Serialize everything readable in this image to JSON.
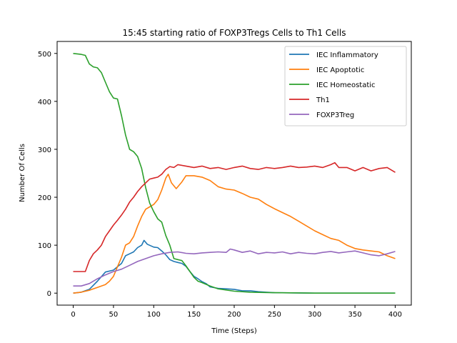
{
  "chart_data": {
    "type": "line",
    "title": "15:45 starting ratio of FOXP3Tregs Cells to Th1 Cells",
    "xlabel": "Time (Steps)",
    "ylabel": "Number Of Cells",
    "xlim": [
      -20,
      420
    ],
    "ylim": [
      -25,
      525
    ],
    "xticks": [
      0,
      50,
      100,
      150,
      200,
      250,
      300,
      350,
      400
    ],
    "yticks": [
      0,
      100,
      200,
      300,
      400,
      500
    ],
    "grid": false,
    "legend_position": "top-right",
    "series": [
      {
        "name": "IEC Inflammatory",
        "color": "#1f77b4",
        "points": [
          [
            0,
            0
          ],
          [
            10,
            2
          ],
          [
            20,
            8
          ],
          [
            30,
            25
          ],
          [
            40,
            44
          ],
          [
            50,
            48
          ],
          [
            55,
            55
          ],
          [
            60,
            62
          ],
          [
            65,
            78
          ],
          [
            70,
            82
          ],
          [
            75,
            86
          ],
          [
            80,
            95
          ],
          [
            85,
            100
          ],
          [
            88,
            110
          ],
          [
            92,
            102
          ],
          [
            100,
            96
          ],
          [
            105,
            95
          ],
          [
            110,
            88
          ],
          [
            115,
            80
          ],
          [
            120,
            70
          ],
          [
            125,
            66
          ],
          [
            130,
            64
          ],
          [
            135,
            62
          ],
          [
            140,
            56
          ],
          [
            145,
            45
          ],
          [
            150,
            35
          ],
          [
            155,
            30
          ],
          [
            160,
            24
          ],
          [
            165,
            20
          ],
          [
            170,
            13
          ],
          [
            180,
            10
          ],
          [
            190,
            9
          ],
          [
            200,
            8
          ],
          [
            210,
            5
          ],
          [
            220,
            5
          ],
          [
            230,
            3
          ],
          [
            240,
            2
          ],
          [
            250,
            1
          ],
          [
            300,
            0
          ],
          [
            350,
            0
          ],
          [
            400,
            0
          ]
        ]
      },
      {
        "name": "IEC Apoptotic",
        "color": "#ff7f0e",
        "points": [
          [
            0,
            0
          ],
          [
            10,
            2
          ],
          [
            20,
            6
          ],
          [
            30,
            12
          ],
          [
            40,
            18
          ],
          [
            45,
            25
          ],
          [
            50,
            35
          ],
          [
            55,
            55
          ],
          [
            60,
            75
          ],
          [
            65,
            100
          ],
          [
            70,
            105
          ],
          [
            75,
            118
          ],
          [
            80,
            140
          ],
          [
            85,
            160
          ],
          [
            90,
            175
          ],
          [
            95,
            180
          ],
          [
            100,
            185
          ],
          [
            105,
            195
          ],
          [
            110,
            215
          ],
          [
            115,
            240
          ],
          [
            118,
            248
          ],
          [
            122,
            230
          ],
          [
            128,
            218
          ],
          [
            135,
            232
          ],
          [
            140,
            245
          ],
          [
            150,
            245
          ],
          [
            160,
            242
          ],
          [
            170,
            235
          ],
          [
            180,
            222
          ],
          [
            190,
            217
          ],
          [
            200,
            215
          ],
          [
            210,
            208
          ],
          [
            220,
            200
          ],
          [
            230,
            196
          ],
          [
            240,
            185
          ],
          [
            250,
            176
          ],
          [
            260,
            168
          ],
          [
            270,
            160
          ],
          [
            280,
            150
          ],
          [
            290,
            140
          ],
          [
            300,
            130
          ],
          [
            310,
            122
          ],
          [
            320,
            114
          ],
          [
            330,
            110
          ],
          [
            340,
            100
          ],
          [
            350,
            93
          ],
          [
            360,
            90
          ],
          [
            370,
            88
          ],
          [
            380,
            86
          ],
          [
            390,
            78
          ],
          [
            400,
            72
          ]
        ]
      },
      {
        "name": "IEC Homeostatic",
        "color": "#2ca02c",
        "points": [
          [
            0,
            500
          ],
          [
            10,
            498
          ],
          [
            15,
            496
          ],
          [
            20,
            478
          ],
          [
            25,
            472
          ],
          [
            30,
            470
          ],
          [
            35,
            460
          ],
          [
            40,
            440
          ],
          [
            45,
            420
          ],
          [
            50,
            407
          ],
          [
            55,
            405
          ],
          [
            60,
            370
          ],
          [
            65,
            330
          ],
          [
            70,
            300
          ],
          [
            75,
            295
          ],
          [
            80,
            285
          ],
          [
            85,
            260
          ],
          [
            90,
            220
          ],
          [
            95,
            188
          ],
          [
            100,
            170
          ],
          [
            105,
            155
          ],
          [
            110,
            148
          ],
          [
            115,
            120
          ],
          [
            120,
            100
          ],
          [
            125,
            72
          ],
          [
            130,
            70
          ],
          [
            135,
            68
          ],
          [
            140,
            57
          ],
          [
            145,
            45
          ],
          [
            150,
            33
          ],
          [
            155,
            25
          ],
          [
            160,
            22
          ],
          [
            170,
            15
          ],
          [
            180,
            9
          ],
          [
            200,
            4
          ],
          [
            220,
            2
          ],
          [
            250,
            1
          ],
          [
            300,
            0
          ],
          [
            350,
            0
          ],
          [
            400,
            0
          ]
        ]
      },
      {
        "name": "Th1",
        "color": "#d62728",
        "points": [
          [
            0,
            45
          ],
          [
            10,
            45
          ],
          [
            15,
            45
          ],
          [
            20,
            68
          ],
          [
            25,
            82
          ],
          [
            30,
            90
          ],
          [
            35,
            100
          ],
          [
            40,
            118
          ],
          [
            45,
            130
          ],
          [
            50,
            142
          ],
          [
            55,
            152
          ],
          [
            60,
            163
          ],
          [
            65,
            175
          ],
          [
            70,
            190
          ],
          [
            75,
            200
          ],
          [
            80,
            212
          ],
          [
            85,
            222
          ],
          [
            90,
            230
          ],
          [
            95,
            238
          ],
          [
            100,
            240
          ],
          [
            105,
            242
          ],
          [
            110,
            248
          ],
          [
            115,
            258
          ],
          [
            120,
            264
          ],
          [
            125,
            262
          ],
          [
            130,
            268
          ],
          [
            140,
            265
          ],
          [
            150,
            262
          ],
          [
            160,
            265
          ],
          [
            170,
            260
          ],
          [
            180,
            262
          ],
          [
            190,
            258
          ],
          [
            200,
            262
          ],
          [
            210,
            265
          ],
          [
            220,
            260
          ],
          [
            230,
            258
          ],
          [
            240,
            262
          ],
          [
            250,
            260
          ],
          [
            260,
            262
          ],
          [
            270,
            265
          ],
          [
            280,
            262
          ],
          [
            290,
            263
          ],
          [
            300,
            265
          ],
          [
            310,
            262
          ],
          [
            320,
            268
          ],
          [
            325,
            272
          ],
          [
            330,
            262
          ],
          [
            340,
            262
          ],
          [
            350,
            255
          ],
          [
            360,
            262
          ],
          [
            370,
            255
          ],
          [
            380,
            260
          ],
          [
            390,
            262
          ],
          [
            400,
            252
          ]
        ]
      },
      {
        "name": "FOXP3Treg",
        "color": "#9467bd",
        "points": [
          [
            0,
            15
          ],
          [
            10,
            15
          ],
          [
            20,
            20
          ],
          [
            30,
            30
          ],
          [
            40,
            38
          ],
          [
            50,
            45
          ],
          [
            60,
            50
          ],
          [
            70,
            58
          ],
          [
            80,
            66
          ],
          [
            90,
            72
          ],
          [
            100,
            78
          ],
          [
            110,
            82
          ],
          [
            120,
            85
          ],
          [
            130,
            86
          ],
          [
            140,
            83
          ],
          [
            150,
            82
          ],
          [
            160,
            84
          ],
          [
            170,
            85
          ],
          [
            180,
            86
          ],
          [
            190,
            85
          ],
          [
            195,
            92
          ],
          [
            200,
            90
          ],
          [
            210,
            85
          ],
          [
            220,
            88
          ],
          [
            230,
            82
          ],
          [
            240,
            85
          ],
          [
            250,
            84
          ],
          [
            260,
            86
          ],
          [
            270,
            82
          ],
          [
            280,
            85
          ],
          [
            290,
            83
          ],
          [
            300,
            82
          ],
          [
            310,
            85
          ],
          [
            320,
            87
          ],
          [
            330,
            84
          ],
          [
            340,
            86
          ],
          [
            350,
            88
          ],
          [
            360,
            84
          ],
          [
            370,
            80
          ],
          [
            380,
            78
          ],
          [
            390,
            82
          ],
          [
            400,
            87
          ]
        ]
      }
    ]
  }
}
